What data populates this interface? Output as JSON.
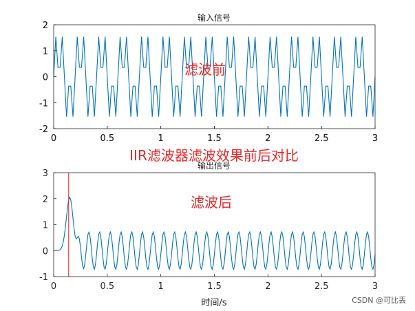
{
  "chart_data": [
    {
      "type": "line",
      "title": "输入信号",
      "xlabel": "",
      "ylabel": "",
      "xlim": [
        0,
        3
      ],
      "ylim": [
        -2,
        2
      ],
      "x_ticks": [
        "0",
        "0.5",
        "1",
        "1.5",
        "2",
        "2.5",
        "3"
      ],
      "y_ticks": [
        "2",
        "1",
        "0",
        "-1",
        "-2"
      ],
      "color": "#0072bd",
      "annotation": "滤波前",
      "series": [
        {
          "signal": "sin(2*pi*5*t) + sin(2*pi*15*t)",
          "t_start": 0,
          "t_end": 3,
          "sample_step": 0.02
        }
      ]
    },
    {
      "type": "line",
      "title": "输出信号",
      "xlabel": "时间/s",
      "ylabel": "",
      "xlim": [
        0,
        3
      ],
      "ylim": [
        -1,
        3
      ],
      "x_ticks": [
        "0",
        "0.5",
        "1",
        "1.5",
        "2",
        "2.5",
        "3"
      ],
      "y_ticks": [
        "3",
        "2",
        "1",
        "0",
        "-1"
      ],
      "color": "#0072bd",
      "marker_color": "#e8282b",
      "marker_x": 0.14,
      "annotation": "滤波后",
      "series": [
        {
          "steady_amplitude": 0.72,
          "frequency_hz": 10,
          "transient_peak": 2.05,
          "transient_peak_t": 0.15,
          "t_start": 0,
          "t_end": 3,
          "sample_step": 0.01
        }
      ]
    }
  ],
  "overlay_title": "IIR滤波器滤波效果前后对比",
  "watermark": "CSDN @可比丢"
}
